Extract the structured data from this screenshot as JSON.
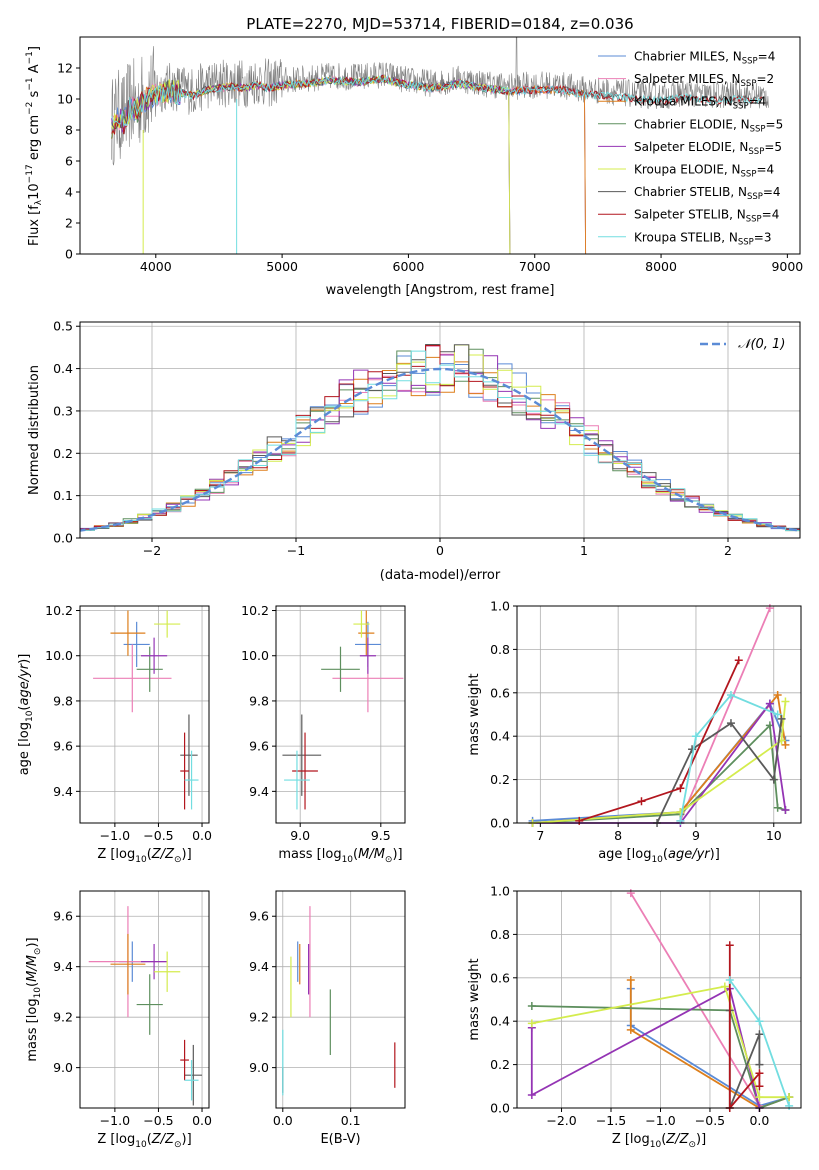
{
  "figure_title": "PLATE=2270, MJD=53714, FIBERID=0184, z=0.036",
  "colors": {
    "Chabrier MILES": "#5b8bd6",
    "Salpeter MILES": "#ec7fb6",
    "Kroupa MILES": "#dd7f1c",
    "Chabrier ELODIE": "#5e8f5e",
    "Salpeter ELODIE": "#9434b4",
    "Kroupa ELODIE": "#d4ec4e",
    "Chabrier STELIB": "#5a5a5a",
    "Salpeter STELIB": "#b2161e",
    "Kroupa STELIB": "#72dde0"
  },
  "chart_data": [
    {
      "id": "spectrum",
      "type": "line",
      "title": "PLATE=2270, MJD=53714, FIBERID=0184, z=0.036",
      "xlabel": "wavelength [Angstrom, rest frame]",
      "ylabel": "Flux [fλ10⁻¹⁷ erg cm⁻² s⁻¹ A⁻¹]",
      "xlim": [
        3400,
        9100
      ],
      "ylim": [
        0,
        14
      ],
      "xticks": [
        4000,
        5000,
        6000,
        7000,
        8000,
        9000
      ],
      "yticks": [
        0,
        2,
        4,
        6,
        8,
        10,
        12
      ],
      "grid": false,
      "legend": "top-right",
      "data_color": "#808080",
      "data_x": [
        3650,
        3700,
        3750,
        3800,
        3850,
        3900,
        3950,
        4000,
        4100,
        4200,
        4300,
        4400,
        4500,
        4600,
        4700,
        4800,
        4900,
        5000,
        5200,
        5400,
        5600,
        5800,
        6000,
        6200,
        6400,
        6600,
        6800,
        7000,
        7200,
        7400,
        7600,
        7800,
        8000,
        8200,
        8400,
        8600,
        8800
      ],
      "data_y": [
        8.5,
        9.0,
        8.8,
        9.8,
        9.5,
        10.2,
        10.4,
        10.6,
        10.8,
        10.7,
        10.5,
        10.9,
        11.0,
        11.1,
        11.0,
        11.2,
        11.0,
        11.2,
        11.3,
        11.5,
        11.4,
        11.6,
        11.2,
        11.0,
        11.3,
        11.0,
        10.8,
        10.9,
        10.9,
        10.6,
        10.5,
        10.3,
        10.2,
        10.4,
        10.2,
        10.3,
        10.2
      ],
      "series": [
        {
          "name": "Chabrier MILES, N_SSP=4",
          "label_text": "Chabrier MILES, N",
          "sub": "SSP",
          "tail": "=4",
          "x_end": 7400
        },
        {
          "name": "Salpeter MILES, N_SSP=2",
          "label_text": "Salpeter MILES, N",
          "sub": "SSP",
          "tail": "=2",
          "x_end": 7400
        },
        {
          "name": "Kroupa MILES, N_SSP=4",
          "label_text": "Kroupa MILES, N",
          "sub": "SSP",
          "tail": "=4",
          "x_end": 7400
        },
        {
          "name": "Chabrier ELODIE, N_SSP=5",
          "label_text": "Chabrier ELODIE, N",
          "sub": "SSP",
          "tail": "=5",
          "x_end": 6800
        },
        {
          "name": "Salpeter ELODIE, N_SSP=5",
          "label_text": "Salpeter ELODIE, N",
          "sub": "SSP",
          "tail": "=5",
          "x_end": 6800
        },
        {
          "name": "Kroupa ELODIE, N_SSP=4",
          "label_text": "Kroupa ELODIE, N",
          "sub": "SSP",
          "tail": "=4",
          "x_end": 6800
        },
        {
          "name": "Chabrier STELIB, N_SSP=4",
          "label_text": "Chabrier STELIB, N",
          "sub": "SSP",
          "tail": "=4",
          "x_end": 8800
        },
        {
          "name": "Salpeter STELIB, N_SSP=4",
          "label_text": "Salpeter STELIB, N",
          "sub": "SSP",
          "tail": "=4",
          "x_end": 8800
        },
        {
          "name": "Kroupa STELIB, N_SSP=3",
          "label_text": "Kroupa STELIB, N",
          "sub": "SSP",
          "tail": "=3",
          "x_end": 8800
        }
      ]
    },
    {
      "id": "residuals",
      "type": "line",
      "xlabel": "(data-model)/error",
      "ylabel": "Normed distribution",
      "xlim": [
        -2.5,
        2.5
      ],
      "ylim": [
        0,
        0.51
      ],
      "xticks": [
        -2,
        -1,
        0,
        1,
        2
      ],
      "yticks": [
        0.0,
        0.1,
        0.2,
        0.3,
        0.4,
        0.5
      ],
      "grid": true,
      "legend": "top-right",
      "normal_label": "𝒩(0, 1)",
      "normal_color": "#5b8bd6",
      "bin_width": 0.1
    },
    {
      "id": "age-vs-Z",
      "type": "scatter",
      "xlabel": "Z [log10(Z/Z⊙)]",
      "ylabel": "age  [log10(age/yr)]",
      "xlim": [
        -1.4,
        0.08
      ],
      "ylim": [
        9.26,
        10.22
      ],
      "xticks": [
        -1.0,
        -0.5,
        0.0
      ],
      "xticklabels": [
        "−1.0",
        "−0.5",
        "0.0"
      ],
      "yticks": [
        9.4,
        9.6,
        9.8,
        10.0,
        10.2
      ],
      "grid": true,
      "points": [
        {
          "series": "Chabrier MILES",
          "x": -0.75,
          "y": 10.05,
          "xerr": 0.15,
          "yerr": 0.1
        },
        {
          "series": "Salpeter MILES",
          "x": -0.8,
          "y": 9.9,
          "xerr": 0.45,
          "yerr": 0.15
        },
        {
          "series": "Kroupa MILES",
          "x": -0.85,
          "y": 10.1,
          "xerr": 0.2,
          "yerr": 0.1
        },
        {
          "series": "Chabrier ELODIE",
          "x": -0.6,
          "y": 9.94,
          "xerr": 0.15,
          "yerr": 0.1
        },
        {
          "series": "Salpeter ELODIE",
          "x": -0.55,
          "y": 10.0,
          "xerr": 0.15,
          "yerr": 0.08
        },
        {
          "series": "Kroupa ELODIE",
          "x": -0.4,
          "y": 10.14,
          "xerr": 0.15,
          "yerr": 0.06
        },
        {
          "series": "Chabrier STELIB",
          "x": -0.15,
          "y": 9.56,
          "xerr": 0.1,
          "yerr": 0.18
        },
        {
          "series": "Salpeter STELIB",
          "x": -0.2,
          "y": 9.49,
          "xerr": 0.05,
          "yerr": 0.17
        },
        {
          "series": "Kroupa STELIB",
          "x": -0.12,
          "y": 9.45,
          "xerr": 0.08,
          "yerr": 0.13
        }
      ]
    },
    {
      "id": "age-vs-mass",
      "type": "scatter",
      "xlabel": "mass [log10(M/M⊙)]",
      "xlim": [
        8.85,
        9.65
      ],
      "ylim": [
        9.26,
        10.22
      ],
      "xticks": [
        9.0,
        9.5
      ],
      "yticks": [
        9.4,
        9.6,
        9.8,
        10.0,
        10.2
      ],
      "grid": true,
      "points": [
        {
          "series": "Chabrier MILES",
          "x": 9.42,
          "y": 10.05,
          "xerr": 0.08,
          "yerr": 0.1
        },
        {
          "series": "Salpeter MILES",
          "x": 9.42,
          "y": 9.9,
          "xerr": 0.22,
          "yerr": 0.15
        },
        {
          "series": "Kroupa MILES",
          "x": 9.41,
          "y": 10.1,
          "xerr": 0.05,
          "yerr": 0.1
        },
        {
          "series": "Chabrier ELODIE",
          "x": 9.25,
          "y": 9.94,
          "xerr": 0.12,
          "yerr": 0.1
        },
        {
          "series": "Salpeter ELODIE",
          "x": 9.42,
          "y": 10.0,
          "xerr": 0.05,
          "yerr": 0.08
        },
        {
          "series": "Kroupa ELODIE",
          "x": 9.38,
          "y": 10.14,
          "xerr": 0.05,
          "yerr": 0.06
        },
        {
          "series": "Chabrier STELIB",
          "x": 9.01,
          "y": 9.56,
          "xerr": 0.12,
          "yerr": 0.18
        },
        {
          "series": "Salpeter STELIB",
          "x": 9.03,
          "y": 9.49,
          "xerr": 0.08,
          "yerr": 0.17
        },
        {
          "series": "Kroupa STELIB",
          "x": 8.98,
          "y": 9.45,
          "xerr": 0.08,
          "yerr": 0.13
        }
      ]
    },
    {
      "id": "weight-vs-age",
      "type": "line",
      "xlabel": "age  [log10(age/yr)]",
      "ylabel": "mass weight",
      "xlim": [
        6.7,
        10.35
      ],
      "ylim": [
        0,
        1
      ],
      "xticks": [
        7,
        8,
        9,
        10
      ],
      "yticks": [
        0.0,
        0.2,
        0.4,
        0.6,
        0.8,
        1.0
      ],
      "grid": true,
      "series": [
        {
          "name": "Chabrier MILES",
          "x": [
            6.9,
            8.8,
            9.95,
            10.15
          ],
          "y": [
            0.01,
            0.05,
            0.55,
            0.38
          ]
        },
        {
          "name": "Salpeter MILES",
          "x": [
            8.8,
            9.95
          ],
          "y": [
            0.01,
            0.99
          ]
        },
        {
          "name": "Kroupa MILES",
          "x": [
            6.9,
            8.8,
            10.05,
            10.15
          ],
          "y": [
            0.0,
            0.05,
            0.59,
            0.36
          ]
        },
        {
          "name": "Chabrier ELODIE",
          "x": [
            6.9,
            8.8,
            9.95,
            10.05,
            10.15
          ],
          "y": [
            0.0,
            0.04,
            0.45,
            0.07,
            0.06
          ]
        },
        {
          "name": "Salpeter ELODIE",
          "x": [
            6.9,
            8.8,
            9.95,
            10.15
          ],
          "y": [
            0.0,
            0.0,
            0.55,
            0.06
          ]
        },
        {
          "name": "Kroupa ELODIE",
          "x": [
            6.9,
            8.8,
            10.1,
            10.15
          ],
          "y": [
            0.0,
            0.05,
            0.38,
            0.56
          ]
        },
        {
          "name": "Chabrier STELIB",
          "x": [
            8.5,
            8.95,
            9.45,
            10.0,
            10.1
          ],
          "y": [
            0.0,
            0.34,
            0.46,
            0.2,
            0.48
          ]
        },
        {
          "name": "Salpeter STELIB",
          "x": [
            7.5,
            8.3,
            8.8,
            9.55
          ],
          "y": [
            0.01,
            0.1,
            0.16,
            0.75
          ]
        },
        {
          "name": "Kroupa STELIB",
          "x": [
            8.8,
            9.0,
            9.45,
            10.05
          ],
          "y": [
            0.01,
            0.4,
            0.59,
            0.5
          ]
        }
      ]
    },
    {
      "id": "mass-vs-Z",
      "type": "scatter",
      "xlabel": "Z [log10(Z/Z⊙)]",
      "ylabel": "mass [log10(M/M⊙)]",
      "xlim": [
        -1.4,
        0.08
      ],
      "ylim": [
        8.84,
        9.7
      ],
      "xticks": [
        -1.0,
        -0.5,
        0.0
      ],
      "xticklabels": [
        "−1.0",
        "−0.5",
        "0.0"
      ],
      "yticks": [
        9.0,
        9.2,
        9.4,
        9.6
      ],
      "grid": true,
      "points": [
        {
          "series": "Chabrier MILES",
          "x": -0.8,
          "y": 9.42,
          "xerr": 0.15,
          "yerr": 0.08
        },
        {
          "series": "Salpeter MILES",
          "x": -0.85,
          "y": 9.42,
          "xerr": 0.45,
          "yerr": 0.22
        },
        {
          "series": "Kroupa MILES",
          "x": -0.85,
          "y": 9.41,
          "xerr": 0.2,
          "yerr": 0.12
        },
        {
          "series": "Chabrier ELODIE",
          "x": -0.6,
          "y": 9.25,
          "xerr": 0.15,
          "yerr": 0.12
        },
        {
          "series": "Salpeter ELODIE",
          "x": -0.55,
          "y": 9.42,
          "xerr": 0.15,
          "yerr": 0.07
        },
        {
          "series": "Kroupa ELODIE",
          "x": -0.4,
          "y": 9.38,
          "xerr": 0.15,
          "yerr": 0.08
        },
        {
          "series": "Chabrier STELIB",
          "x": -0.1,
          "y": 8.97,
          "xerr": 0.1,
          "yerr": 0.12
        },
        {
          "series": "Salpeter STELIB",
          "x": -0.2,
          "y": 9.03,
          "xerr": 0.05,
          "yerr": 0.08
        },
        {
          "series": "Kroupa STELIB",
          "x": -0.12,
          "y": 8.95,
          "xerr": 0.08,
          "yerr": 0.08
        }
      ]
    },
    {
      "id": "mass-vs-EBV",
      "type": "scatter",
      "xlabel": "E(B-V)",
      "xlim": [
        -0.01,
        0.18
      ],
      "ylim": [
        8.84,
        9.7
      ],
      "xticks": [
        0.0,
        0.1
      ],
      "yticks": [
        9.0,
        9.2,
        9.4,
        9.6
      ],
      "grid": true,
      "points": [
        {
          "series": "Chabrier MILES",
          "x": 0.022,
          "y": 9.42,
          "xerr": 0,
          "yerr": 0.08
        },
        {
          "series": "Salpeter MILES",
          "x": 0.04,
          "y": 9.42,
          "xerr": 0,
          "yerr": 0.22
        },
        {
          "series": "Kroupa MILES",
          "x": 0.025,
          "y": 9.41,
          "xerr": 0,
          "yerr": 0.08
        },
        {
          "series": "Chabrier ELODIE",
          "x": 0.07,
          "y": 9.18,
          "xerr": 0,
          "yerr": 0.13
        },
        {
          "series": "Salpeter ELODIE",
          "x": 0.038,
          "y": 9.39,
          "xerr": 0,
          "yerr": 0.1
        },
        {
          "series": "Kroupa ELODIE",
          "x": 0.012,
          "y": 9.32,
          "xerr": 0,
          "yerr": 0.12
        },
        {
          "series": "Chabrier STELIB",
          "x": 0.0,
          "y": 8.95,
          "xerr": 0,
          "yerr": 0.05
        },
        {
          "series": "Salpeter STELIB",
          "x": 0.165,
          "y": 9.01,
          "xerr": 0,
          "yerr": 0.09
        },
        {
          "series": "Kroupa STELIB",
          "x": 0.0,
          "y": 9.02,
          "xerr": 0,
          "yerr": 0.13
        }
      ]
    },
    {
      "id": "weight-vs-Z",
      "type": "line",
      "xlabel": "Z [log10(Z/Z⊙)]",
      "ylabel": "mass weight",
      "xlim": [
        -2.45,
        0.42
      ],
      "ylim": [
        0,
        1
      ],
      "xticks": [
        -2.0,
        -1.5,
        -1.0,
        -0.5,
        0.0
      ],
      "xticklabels": [
        "−2.0",
        "−1.5",
        "−1.0",
        "−0.5",
        "0.0"
      ],
      "yticks": [
        0.0,
        0.2,
        0.4,
        0.6,
        0.8,
        1.0
      ],
      "grid": true,
      "series": [
        {
          "name": "Chabrier MILES",
          "x": [
            -1.3,
            -1.3,
            0.0,
            0.3
          ],
          "y": [
            0.55,
            0.38,
            0.01,
            0.05
          ]
        },
        {
          "name": "Salpeter MILES",
          "x": [
            -1.3,
            0.0
          ],
          "y": [
            0.99,
            0.01
          ]
        },
        {
          "name": "Kroupa MILES",
          "x": [
            -1.3,
            -1.3,
            0.0,
            0.3
          ],
          "y": [
            0.59,
            0.36,
            0.0,
            0.05
          ]
        },
        {
          "name": "Chabrier ELODIE",
          "x": [
            -2.3,
            -0.3,
            0.0,
            0.3
          ],
          "y": [
            0.47,
            0.45,
            0.0,
            0.05
          ]
        },
        {
          "name": "Salpeter ELODIE",
          "x": [
            -2.3,
            -2.3,
            -0.3,
            0.0
          ],
          "y": [
            0.37,
            0.06,
            0.55,
            0.0
          ]
        },
        {
          "name": "Kroupa ELODIE",
          "x": [
            -2.3,
            -0.35,
            0.0,
            0.3
          ],
          "y": [
            0.39,
            0.56,
            0.05,
            0.05
          ]
        },
        {
          "name": "Chabrier STELIB",
          "x": [
            -0.3,
            -0.3,
            0.0,
            0.0
          ],
          "y": [
            0.45,
            0.0,
            0.34,
            0.2
          ]
        },
        {
          "name": "Salpeter STELIB",
          "x": [
            -0.3,
            -0.3,
            0.0,
            0.0
          ],
          "y": [
            0.75,
            0.0,
            0.16,
            0.1
          ]
        },
        {
          "name": "Kroupa STELIB",
          "x": [
            -0.3,
            0.0,
            0.3
          ],
          "y": [
            0.59,
            0.4,
            0.01
          ]
        }
      ]
    }
  ]
}
